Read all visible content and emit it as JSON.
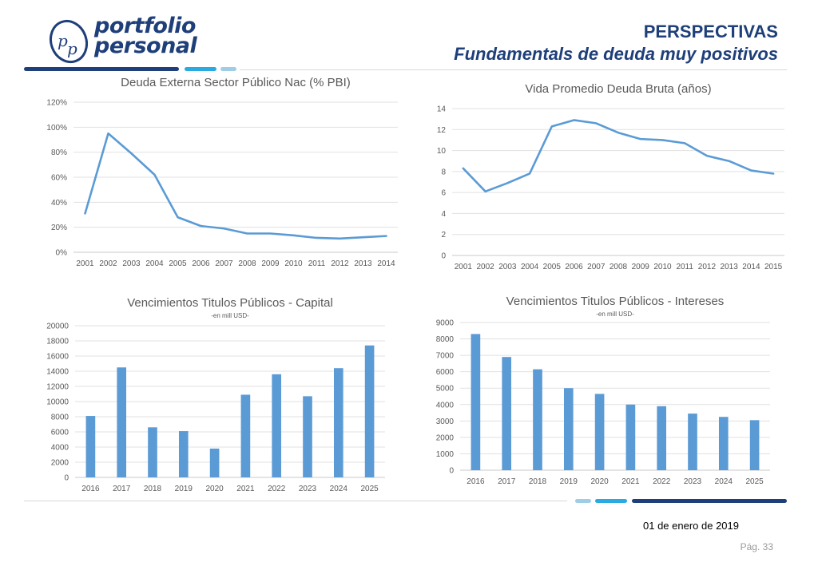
{
  "brand": {
    "logo_text_line1": "portfolio",
    "logo_text_line2": "personal",
    "primary_color": "#1f3f7a",
    "accent_color": "#29abe2",
    "light_accent": "#9fcde6"
  },
  "header": {
    "title": "PERSPECTIVAS",
    "subtitle": "Fundamentals de deuda muy positivos"
  },
  "footer": {
    "date": "01 de enero de 2019",
    "page": "Pág. 33"
  },
  "chart_data": [
    {
      "id": "deuda-externa",
      "type": "line",
      "title": "Deuda Externa Sector Público Nac (% PBI)",
      "subtitle": "",
      "x": [
        "2001",
        "2002",
        "2003",
        "2004",
        "2005",
        "2006",
        "2007",
        "2008",
        "2009",
        "2010",
        "2011",
        "2012",
        "2013",
        "2014"
      ],
      "series": [
        {
          "values": [
            31,
            95,
            79,
            62,
            28,
            21,
            19,
            15,
            15,
            13.5,
            11.5,
            11,
            12,
            13
          ]
        }
      ],
      "ylim": [
        0,
        120
      ],
      "yticks": [
        0,
        20,
        40,
        60,
        80,
        100,
        120
      ],
      "ytick_labels": [
        "0%",
        "20%",
        "40%",
        "60%",
        "80%",
        "100%",
        "120%"
      ],
      "grid": true,
      "color": "#5b9bd5"
    },
    {
      "id": "vida-promedio",
      "type": "line",
      "title": "Vida Promedio Deuda Bruta (años)",
      "subtitle": "",
      "x": [
        "2001",
        "2002",
        "2003",
        "2004",
        "2005",
        "2006",
        "2007",
        "2008",
        "2009",
        "2010",
        "2011",
        "2012",
        "2013",
        "2014",
        "2015"
      ],
      "series": [
        {
          "values": [
            8.3,
            6.1,
            6.9,
            7.8,
            12.3,
            12.9,
            12.6,
            11.7,
            11.1,
            11.0,
            10.7,
            9.5,
            9.0,
            8.1,
            7.8
          ]
        }
      ],
      "ylim": [
        0,
        14
      ],
      "yticks": [
        0,
        2,
        4,
        6,
        8,
        10,
        12,
        14
      ],
      "ytick_labels": [
        "0",
        "2",
        "4",
        "6",
        "8",
        "10",
        "12",
        "14"
      ],
      "grid": true,
      "color": "#5b9bd5"
    },
    {
      "id": "venc-capital",
      "type": "bar",
      "title": "Vencimientos Titulos Públicos - Capital",
      "subtitle": "-en mill USD-",
      "categories": [
        "2016",
        "2017",
        "2018",
        "2019",
        "2020",
        "2021",
        "2022",
        "2023",
        "2024",
        "2025"
      ],
      "values": [
        8100,
        14500,
        6600,
        6100,
        3800,
        10900,
        13600,
        10700,
        14400,
        17400
      ],
      "ylim": [
        0,
        20000
      ],
      "yticks": [
        0,
        2000,
        4000,
        6000,
        8000,
        10000,
        12000,
        14000,
        16000,
        18000,
        20000
      ],
      "ytick_labels": [
        "0",
        "2000",
        "4000",
        "6000",
        "8000",
        "10000",
        "12000",
        "14000",
        "16000",
        "18000",
        "20000"
      ],
      "grid": true,
      "color": "#5b9bd5"
    },
    {
      "id": "venc-intereses",
      "type": "bar",
      "title": "Vencimientos Titulos Públicos - Intereses",
      "subtitle": "-en mill USD-",
      "categories": [
        "2016",
        "2017",
        "2018",
        "2019",
        "2020",
        "2021",
        "2022",
        "2023",
        "2024",
        "2025"
      ],
      "values": [
        8300,
        6900,
        6150,
        5000,
        4650,
        4000,
        3900,
        3450,
        3250,
        3050
      ],
      "ylim": [
        0,
        9000
      ],
      "yticks": [
        0,
        1000,
        2000,
        3000,
        4000,
        5000,
        6000,
        7000,
        8000,
        9000
      ],
      "ytick_labels": [
        "0",
        "1000",
        "2000",
        "3000",
        "4000",
        "5000",
        "6000",
        "7000",
        "8000",
        "9000"
      ],
      "grid": true,
      "color": "#5b9bd5"
    }
  ]
}
